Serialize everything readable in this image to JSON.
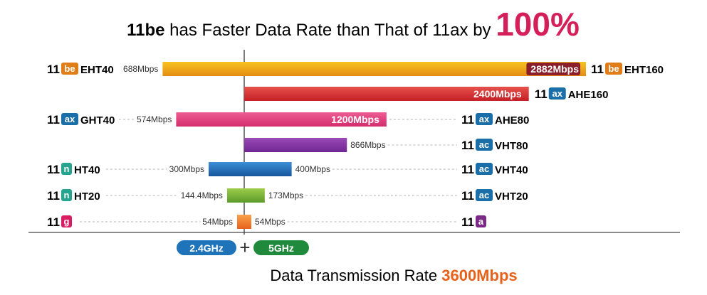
{
  "title": {
    "highlight": "11be",
    "text": " has Faster Data Rate than That of 11ax by ",
    "percent": "100%"
  },
  "footer": {
    "text": "Data Transmission Rate ",
    "value": "3600Mbps"
  },
  "frequency_bands": [
    {
      "label": "2.4GHz",
      "color": "#1f73b8"
    },
    {
      "label": "5GHz",
      "color": "#1f8a3c"
    }
  ],
  "plus_sign": "+",
  "standard_prefix": "11",
  "badge_colors": {
    "be": "#e07d16",
    "ax": "#1b6fa8",
    "ac": "#1b6fa8",
    "n": "#25a58f",
    "g": "#d91c63",
    "a": "#7a2a86"
  },
  "chart_data": {
    "type": "bar",
    "orientation": "horizontal",
    "layout": "diverging (2.4GHz extends left, 5GHz extends right)",
    "unit": "Mbps",
    "rows": [
      {
        "left": {
          "badge": "be",
          "mode": "EHT40",
          "value": 688,
          "label": "688Mbps"
        },
        "right": {
          "badge": "be",
          "mode": "EHT160",
          "value": 2882,
          "label": "2882Mbps"
        },
        "colors": [
          "#f7c21f",
          "#e38d12"
        ]
      },
      {
        "left": null,
        "right": {
          "badge": "ax",
          "mode": "AHE160",
          "value": 2400,
          "label": "2400Mbps"
        },
        "colors": [
          "#e6504b",
          "#c42026"
        ]
      },
      {
        "left": {
          "badge": "ax",
          "mode": "GHT40",
          "value": 574,
          "label": "574Mbps"
        },
        "right": {
          "badge": "ax",
          "mode": "AHE80",
          "value": 1200,
          "label": "1200Mbps"
        },
        "colors": [
          "#ee5d93",
          "#d32c6d"
        ]
      },
      {
        "left": null,
        "right": {
          "badge": "ac",
          "mode": "VHT80",
          "value": 866,
          "label": "866Mbps"
        },
        "colors": [
          "#9a4ab6",
          "#6f2693"
        ]
      },
      {
        "left": {
          "badge": "n",
          "mode": "HT40",
          "value": 300,
          "label": "300Mbps"
        },
        "right": {
          "badge": "ac",
          "mode": "VHT40",
          "value": 400,
          "label": "400Mbps"
        },
        "colors": [
          "#3b8fd6",
          "#17569c"
        ]
      },
      {
        "left": {
          "badge": "n",
          "mode": "HT20",
          "value": 144.4,
          "label": "144.4Mbps"
        },
        "right": {
          "badge": "ac",
          "mode": "VHT20",
          "value": 173,
          "label": "173Mbps"
        },
        "colors": [
          "#9ccd4a",
          "#5d9a2b"
        ]
      },
      {
        "left": {
          "badge": "g",
          "mode": "",
          "value": 54,
          "label": "54Mbps"
        },
        "right": {
          "badge": "a",
          "mode": "",
          "value": 54,
          "label": "54Mbps"
        },
        "colors": [
          "#f8a34c",
          "#e8611a"
        ]
      }
    ]
  }
}
